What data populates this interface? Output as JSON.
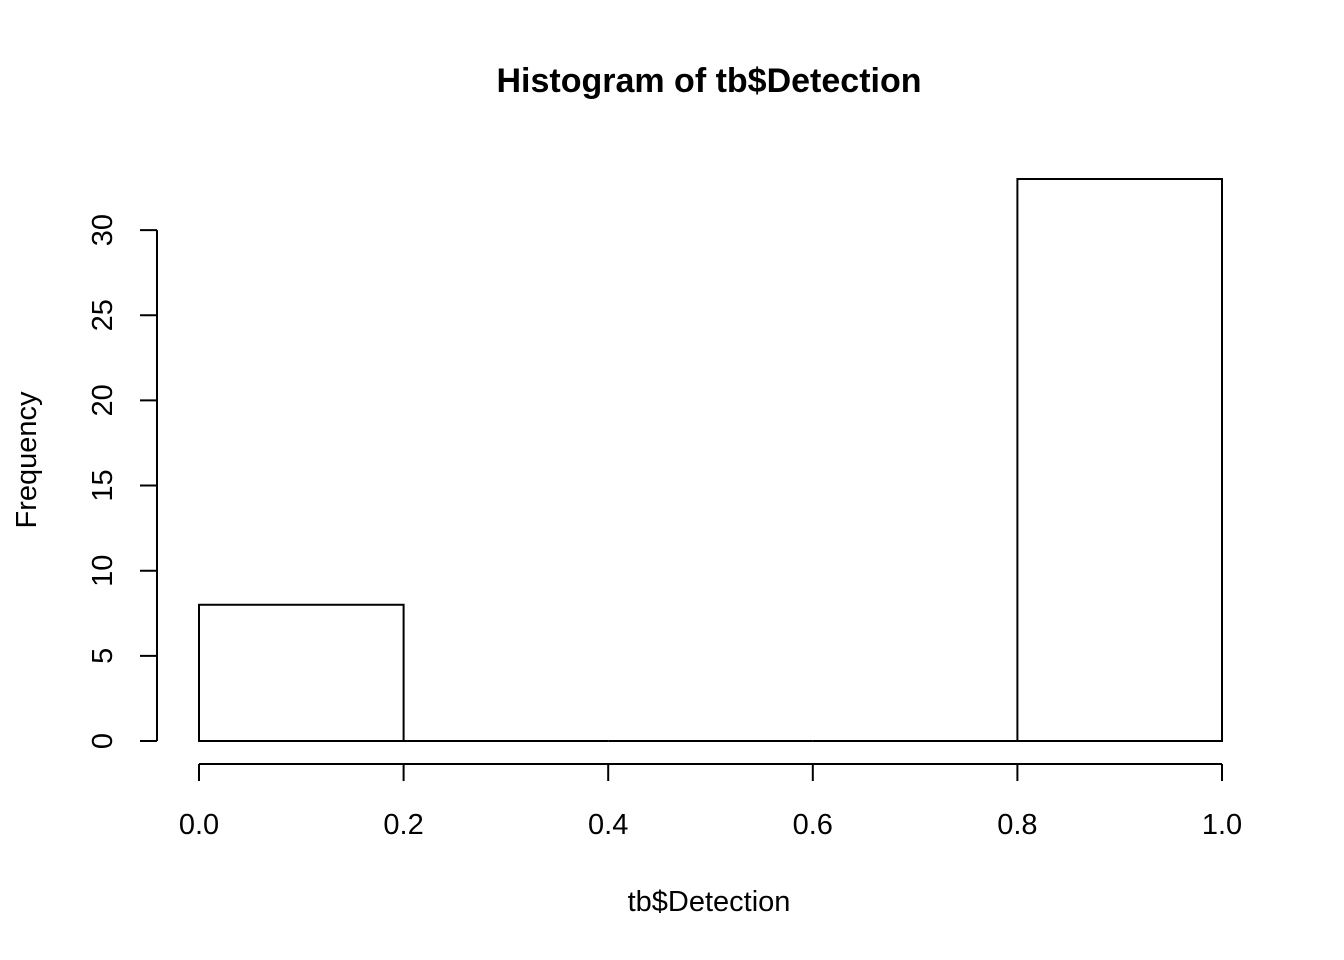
{
  "chart_data": {
    "type": "bar",
    "subtype": "histogram",
    "title": "Histogram of tb$Detection",
    "xlabel": "tb$Detection",
    "ylabel": "Frequency",
    "bins": [
      {
        "start": 0.0,
        "end": 0.2,
        "count": 8
      },
      {
        "start": 0.2,
        "end": 0.4,
        "count": 0
      },
      {
        "start": 0.4,
        "end": 0.6,
        "count": 0
      },
      {
        "start": 0.6,
        "end": 0.8,
        "count": 0
      },
      {
        "start": 0.8,
        "end": 1.0,
        "count": 33
      }
    ],
    "xlim": [
      0.0,
      1.0
    ],
    "ylim": [
      0,
      33
    ],
    "x_ticks": [
      0.0,
      0.2,
      0.4,
      0.6,
      0.8,
      1.0
    ],
    "x_tick_labels": [
      "0.0",
      "0.2",
      "0.4",
      "0.6",
      "0.8",
      "1.0"
    ],
    "y_ticks": [
      0,
      5,
      10,
      15,
      20,
      25,
      30
    ],
    "y_tick_labels": [
      "0",
      "5",
      "10",
      "15",
      "20",
      "25",
      "30"
    ],
    "grid": false,
    "bar_fill": "#ffffff",
    "bar_stroke": "#000000"
  }
}
